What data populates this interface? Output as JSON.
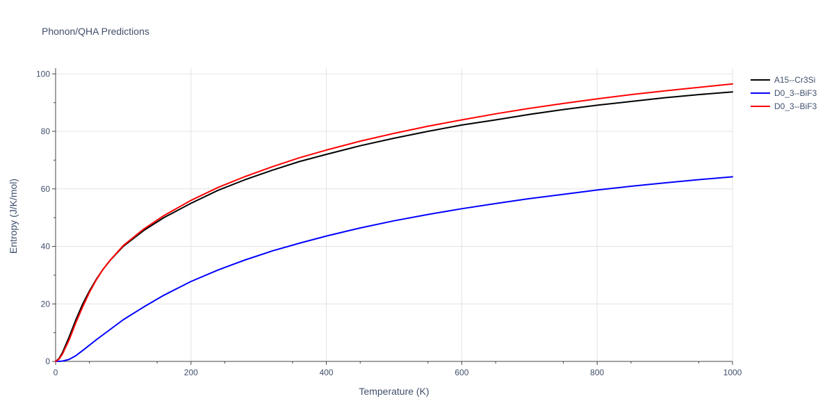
{
  "chart_data": {
    "type": "line",
    "title": "Phonon/QHA Predictions",
    "xlabel": "Temperature (K)",
    "ylabel": "Entropy (J/K/mol)",
    "xlim": [
      0,
      1000
    ],
    "ylim": [
      0,
      102
    ],
    "xticks": [
      0,
      200,
      400,
      600,
      800,
      1000
    ],
    "yticks": [
      0,
      20,
      40,
      60,
      80,
      100
    ],
    "grid": true,
    "legend_position": "top-right",
    "series": [
      {
        "name": "A15--Cr3Si",
        "color": "#000000",
        "x": [
          0,
          5,
          10,
          20,
          30,
          40,
          50,
          60,
          70,
          80,
          100,
          130,
          160,
          200,
          240,
          280,
          320,
          360,
          400,
          450,
          500,
          550,
          600,
          650,
          700,
          750,
          800,
          850,
          900,
          950,
          1000
        ],
        "y": [
          0,
          1,
          3,
          8.5,
          14.5,
          20,
          24.5,
          28.5,
          32,
          35,
          40,
          45.5,
          50,
          55,
          59.5,
          63.2,
          66.5,
          69.5,
          72,
          75,
          77.6,
          80,
          82.2,
          84,
          85.9,
          87.6,
          89.1,
          90.4,
          91.7,
          92.8,
          93.7
        ]
      },
      {
        "name": "D0_3--BiF3",
        "color": "#0000ff",
        "x": [
          0,
          10,
          20,
          30,
          40,
          60,
          80,
          100,
          130,
          160,
          200,
          240,
          280,
          320,
          360,
          400,
          450,
          500,
          550,
          600,
          650,
          700,
          750,
          800,
          850,
          900,
          950,
          1000
        ],
        "y": [
          0,
          0.1,
          0.7,
          2,
          3.8,
          7.5,
          11,
          14.5,
          18.9,
          23,
          27.8,
          31.8,
          35.3,
          38.4,
          41.1,
          43.6,
          46.4,
          48.9,
          51.1,
          53.1,
          54.9,
          56.6,
          58.1,
          59.6,
          60.9,
          62.1,
          63.2,
          64.2
        ]
      },
      {
        "name": "D0_3--BiF3",
        "color": "#ff0000",
        "x": [
          0,
          5,
          10,
          20,
          30,
          40,
          50,
          60,
          70,
          80,
          100,
          130,
          160,
          200,
          240,
          280,
          320,
          360,
          400,
          450,
          500,
          550,
          600,
          650,
          700,
          750,
          800,
          850,
          900,
          950,
          1000
        ],
        "y": [
          0,
          0.8,
          2.5,
          7.5,
          13.5,
          19,
          24,
          28.3,
          32,
          35,
          40.3,
          46,
          50.7,
          56,
          60.5,
          64.3,
          67.7,
          70.8,
          73.5,
          76.6,
          79.3,
          81.8,
          84,
          86.1,
          88,
          89.7,
          91.3,
          92.8,
          94.1,
          95.3,
          96.5
        ]
      }
    ]
  }
}
